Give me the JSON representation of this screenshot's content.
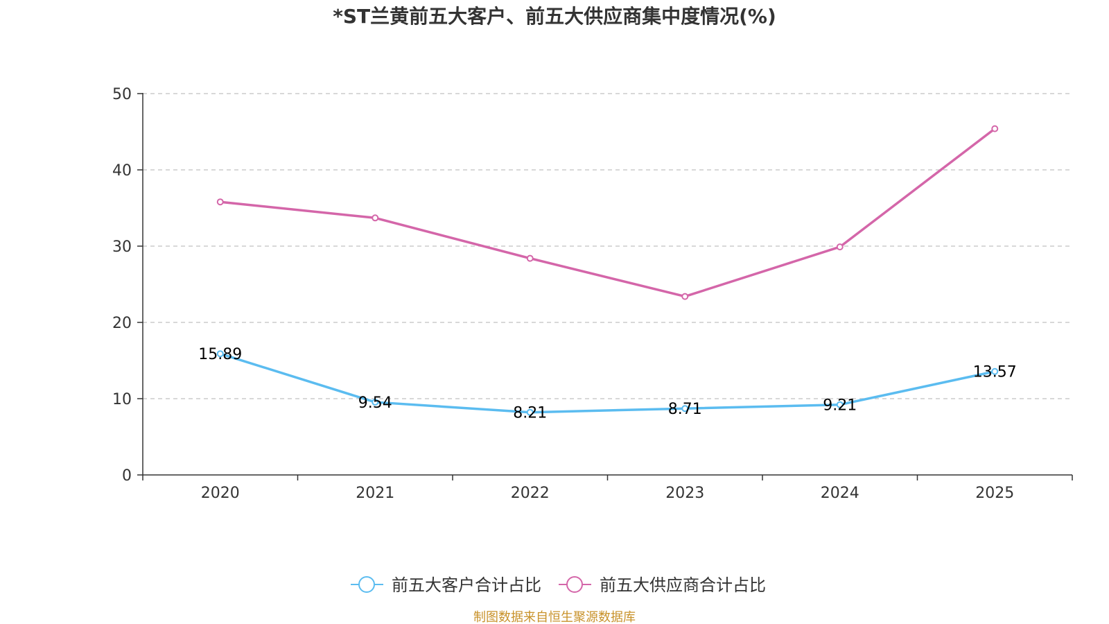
{
  "chart_data": {
    "type": "line",
    "title": "*ST兰黄前五大客户、前五大供应商集中度情况(%)",
    "categories": [
      "2020",
      "2021",
      "2022",
      "2023",
      "2024",
      "2025"
    ],
    "ylim": [
      0,
      50
    ],
    "yticks": [
      0,
      10,
      20,
      30,
      40,
      50
    ],
    "grid": true,
    "legend_position": "bottom-center",
    "series": [
      {
        "name": "前五大客户合计占比",
        "color": "#5bbcf0",
        "values": [
          15.89,
          9.54,
          8.21,
          8.71,
          9.21,
          13.57
        ],
        "labels": [
          "15.89",
          "9.54",
          "8.21",
          "8.71",
          "9.21",
          "13.57"
        ],
        "show_labels": true
      },
      {
        "name": "前五大供应商合计占比",
        "color": "#d466a9",
        "values": [
          35.8,
          33.7,
          28.4,
          23.4,
          29.9,
          45.4
        ],
        "show_labels": false
      }
    ]
  },
  "source": {
    "text": "制图数据来自恒生聚源数据库",
    "color": "#c8922a"
  }
}
